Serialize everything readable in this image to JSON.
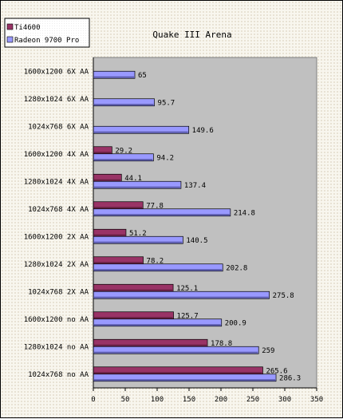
{
  "chart_data": {
    "type": "bar",
    "orientation": "horizontal",
    "title": "Quake III Arena",
    "categories": [
      "1600x1200 6X AA",
      "1280x1024 6X AA",
      "1024x768 6X AA",
      "1600x1200 4X AA",
      "1280x1024 4X AA",
      "1024x768 4X AA",
      "1600x1200 2X AA",
      "1280x1024 2X AA",
      "1024x768 2X AA",
      "1600x1200 no AA",
      "1280x1024 no AA",
      "1024x768 no AA"
    ],
    "series": [
      {
        "name": "Ti4600",
        "color": "#993366",
        "values": [
          null,
          null,
          null,
          29.2,
          44.1,
          77.8,
          51.2,
          78.2,
          125.1,
          125.7,
          178.8,
          265.6
        ],
        "labels": [
          "",
          "",
          "",
          "29.2",
          "44.1",
          "77.8",
          "51.2",
          "78.2",
          "125.1",
          "125.7",
          "178.8",
          "265.6"
        ]
      },
      {
        "name": "Radeon 9700 Pro",
        "color": "#9999ff",
        "values": [
          65,
          95.7,
          149.6,
          94.2,
          137.4,
          214.8,
          140.5,
          202.8,
          275.8,
          200.9,
          259,
          286.3
        ],
        "labels": [
          "65",
          "95.7",
          "149.6",
          "94.2",
          "137.4",
          "214.8",
          "140.5",
          "202.8",
          "275.8",
          "200.9",
          "259",
          "286.3"
        ]
      }
    ],
    "xlim": [
      0,
      350
    ],
    "xticks": [
      0,
      50,
      100,
      150,
      200,
      250,
      300,
      350
    ],
    "xtick_labels": [
      "0",
      "50",
      "100",
      "150",
      "200",
      "250",
      "300",
      "350"
    ],
    "plot_background": "#c0c0c0",
    "grid": false,
    "legend_position": "top-left"
  }
}
